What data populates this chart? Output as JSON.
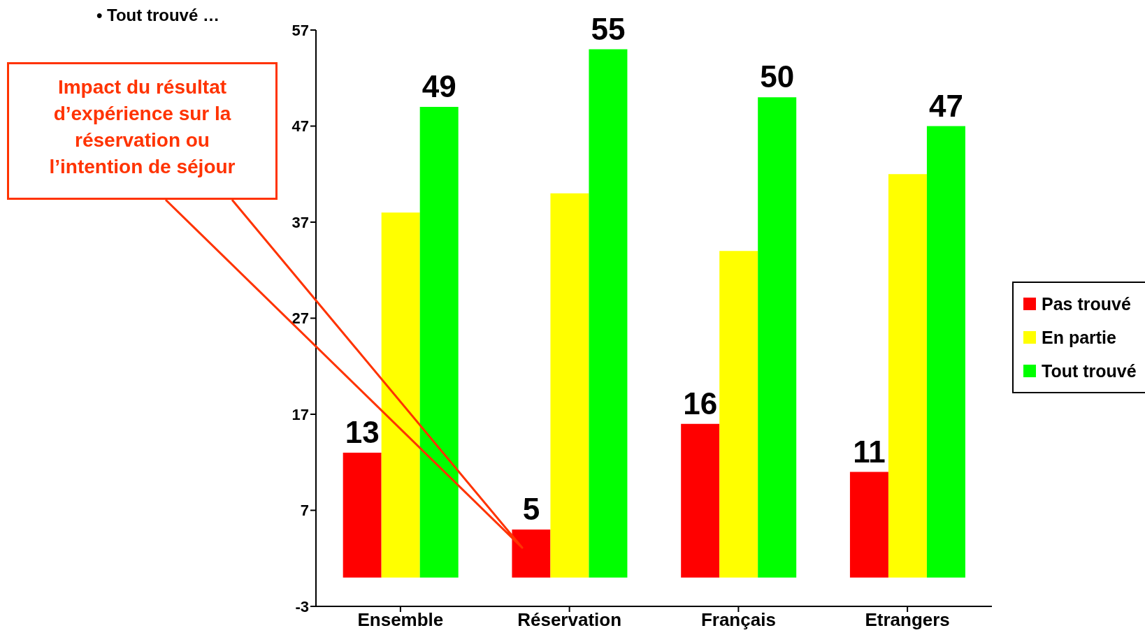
{
  "chart_data": {
    "type": "bar",
    "categories": [
      "Ensemble",
      "Réservation",
      "Français",
      "Etrangers"
    ],
    "series": [
      {
        "name": "Pas trouvé",
        "color": "#ff0000",
        "values": [
          13,
          5,
          16,
          11
        ],
        "value_labels": [
          "13",
          "5",
          "16",
          "11"
        ]
      },
      {
        "name": "En partie",
        "color": "#ffff00",
        "values": [
          38,
          40,
          34,
          42
        ]
      },
      {
        "name": "Tout trouvé",
        "color": "#00ff00",
        "values": [
          49,
          55,
          50,
          47
        ],
        "value_labels": [
          "49",
          "55",
          "50",
          "47"
        ]
      }
    ],
    "ylim": [
      -3,
      57
    ],
    "yticks": [
      -3,
      7,
      17,
      27,
      37,
      47,
      57
    ],
    "grid": false,
    "legend": "right",
    "annotations": [
      "• Tout trouvé …",
      "Impact du résultat d’expérience sur la réservation ou l’intention de séjour"
    ]
  }
}
